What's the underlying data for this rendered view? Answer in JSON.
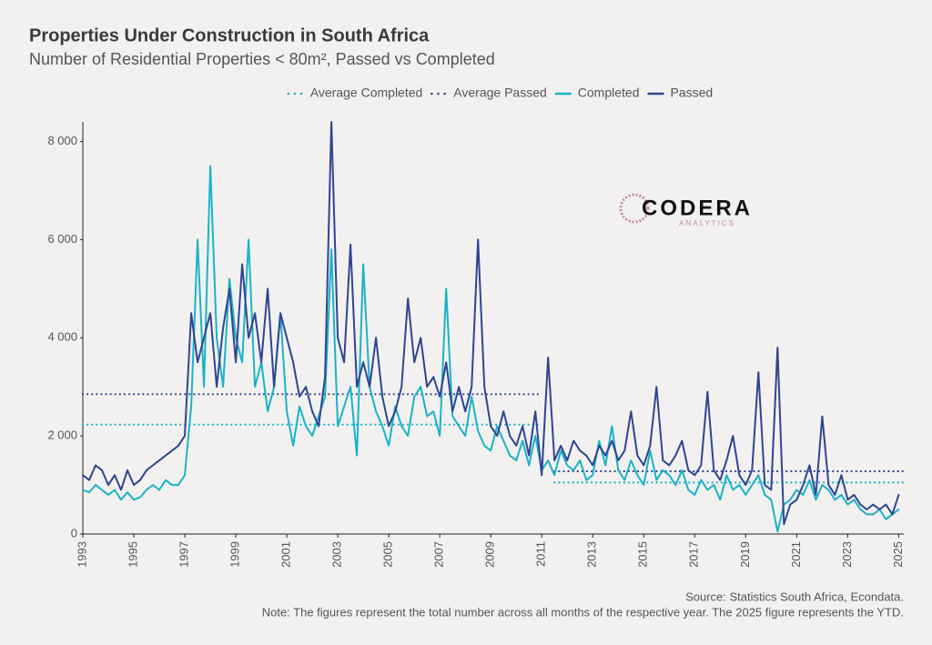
{
  "chart_data": {
    "type": "line",
    "title": "Properties Under Construction in South Africa",
    "subtitle": "Number of Residential Properties < 80m², Passed vs Completed",
    "source": "Source: Statistics South Africa, Econdata.",
    "note": "Note: The figures represent the total number across all months of the respective year. The 2025 figure represents the YTD.",
    "logo": {
      "name": "CODERA",
      "tagline": "ANALYTICS"
    },
    "xlim": [
      1993,
      2025.2
    ],
    "xticks": [
      1993,
      1995,
      1997,
      1999,
      2001,
      2003,
      2005,
      2007,
      2009,
      2011,
      2013,
      2015,
      2017,
      2019,
      2021,
      2023,
      2025
    ],
    "ylim": [
      0,
      8400
    ],
    "yticks": [
      0,
      {
        "value": 2000,
        "label": "2 000"
      },
      {
        "value": 4000,
        "label": "4 000"
      },
      {
        "value": 6000,
        "label": "6 000"
      },
      {
        "value": 8000,
        "label": "8 000"
      }
    ],
    "grid": false,
    "legend": "top",
    "x": [
      1993,
      1993.25,
      1993.5,
      1993.75,
      1994,
      1994.25,
      1994.5,
      1994.75,
      1995,
      1995.25,
      1995.5,
      1995.75,
      1996,
      1996.25,
      1996.5,
      1996.75,
      1997,
      1997.25,
      1997.5,
      1997.75,
      1998,
      1998.25,
      1998.5,
      1998.75,
      1999,
      1999.25,
      1999.5,
      1999.75,
      2000,
      2000.25,
      2000.5,
      2000.75,
      2001,
      2001.25,
      2001.5,
      2001.75,
      2002,
      2002.25,
      2002.5,
      2002.75,
      2003,
      2003.25,
      2003.5,
      2003.75,
      2004,
      2004.25,
      2004.5,
      2004.75,
      2005,
      2005.25,
      2005.5,
      2005.75,
      2006,
      2006.25,
      2006.5,
      2006.75,
      2007,
      2007.25,
      2007.5,
      2007.75,
      2008,
      2008.25,
      2008.5,
      2008.75,
      2009,
      2009.25,
      2009.5,
      2009.75,
      2010,
      2010.25,
      2010.5,
      2010.75,
      2011,
      2011.25,
      2011.5,
      2011.75,
      2012,
      2012.25,
      2012.5,
      2012.75,
      2013,
      2013.25,
      2013.5,
      2013.75,
      2014,
      2014.25,
      2014.5,
      2014.75,
      2015,
      2015.25,
      2015.5,
      2015.75,
      2016,
      2016.25,
      2016.5,
      2016.75,
      2017,
      2017.25,
      2017.5,
      2017.75,
      2018,
      2018.25,
      2018.5,
      2018.75,
      2019,
      2019.25,
      2019.5,
      2019.75,
      2020,
      2020.25,
      2020.5,
      2020.75,
      2021,
      2021.25,
      2021.5,
      2021.75,
      2022,
      2022.25,
      2022.5,
      2022.75,
      2023,
      2023.25,
      2023.5,
      2023.75,
      2024,
      2024.25,
      2024.5,
      2024.75,
      2025
    ],
    "series": [
      {
        "name": "Average Completed",
        "color": "#1ab3c8",
        "dash": "dotted",
        "x": [
          1993,
          2011,
          2011,
          2011.5,
          2025.2
        ],
        "values": [
          2230,
          2230,
          null,
          1050,
          1050
        ]
      },
      {
        "name": "Average Passed",
        "color": "#2e4593",
        "dash": "dotted",
        "x": [
          1993,
          2011,
          2011,
          2011.5,
          2025.2
        ],
        "values": [
          2850,
          2850,
          null,
          1280,
          1280
        ]
      },
      {
        "name": "Completed",
        "color": "#1ab3c8",
        "dash": "solid",
        "values": [
          900,
          850,
          1000,
          900,
          800,
          900,
          700,
          850,
          700,
          750,
          900,
          1000,
          900,
          1100,
          1000,
          1000,
          1200,
          2600,
          6000,
          3000,
          7500,
          4000,
          3000,
          5200,
          4000,
          3500,
          6000,
          3000,
          3500,
          2500,
          3000,
          4500,
          2500,
          1800,
          2600,
          2200,
          2000,
          2400,
          2800,
          5800,
          2200,
          2600,
          3000,
          1600,
          5500,
          3000,
          2500,
          2200,
          1800,
          2600,
          2200,
          2000,
          2800,
          3000,
          2400,
          2500,
          2000,
          5000,
          2400,
          2200,
          2000,
          2800,
          2100,
          1800,
          1700,
          2200,
          1900,
          1600,
          1500,
          1900,
          1400,
          2000,
          1300,
          1500,
          1200,
          1700,
          1400,
          1300,
          1500,
          1100,
          1200,
          1900,
          1400,
          2200,
          1300,
          1100,
          1500,
          1200,
          1000,
          1700,
          1100,
          1300,
          1200,
          1000,
          1300,
          900,
          800,
          1100,
          900,
          1000,
          700,
          1200,
          900,
          1000,
          800,
          1000,
          1200,
          800,
          700,
          50,
          600,
          700,
          900,
          800,
          1100,
          700,
          1000,
          900,
          700,
          800,
          600,
          700,
          500,
          400,
          400,
          500,
          300,
          400,
          500
        ]
      },
      {
        "name": "Passed",
        "color": "#2e4593",
        "dash": "solid",
        "values": [
          1200,
          1100,
          1400,
          1300,
          1000,
          1200,
          900,
          1300,
          1000,
          1100,
          1300,
          1400,
          1500,
          1600,
          1700,
          1800,
          2000,
          4500,
          3500,
          4000,
          4500,
          3000,
          4200,
          5000,
          3500,
          5500,
          4000,
          4500,
          3500,
          5000,
          3000,
          4500,
          4000,
          3500,
          2800,
          3000,
          2500,
          2200,
          3200,
          8400,
          4000,
          3500,
          5900,
          3000,
          3500,
          3000,
          4000,
          2800,
          2200,
          2500,
          3000,
          4800,
          3500,
          4000,
          3000,
          3200,
          2800,
          3500,
          2500,
          3000,
          2500,
          3000,
          6000,
          3000,
          2200,
          2000,
          2500,
          2000,
          1800,
          2200,
          1600,
          2500,
          1200,
          3600,
          1500,
          1800,
          1500,
          1900,
          1700,
          1600,
          1400,
          1800,
          1600,
          1900,
          1500,
          1700,
          2500,
          1600,
          1400,
          1800,
          3000,
          1500,
          1400,
          1600,
          1900,
          1300,
          1200,
          1400,
          2900,
          1300,
          1100,
          1500,
          2000,
          1200,
          1000,
          1300,
          3300,
          1000,
          900,
          3800,
          200,
          600,
          700,
          1000,
          1400,
          800,
          2400,
          1000,
          800,
          1200,
          700,
          800,
          600,
          500,
          600,
          500,
          600,
          400,
          800
        ]
      }
    ]
  }
}
